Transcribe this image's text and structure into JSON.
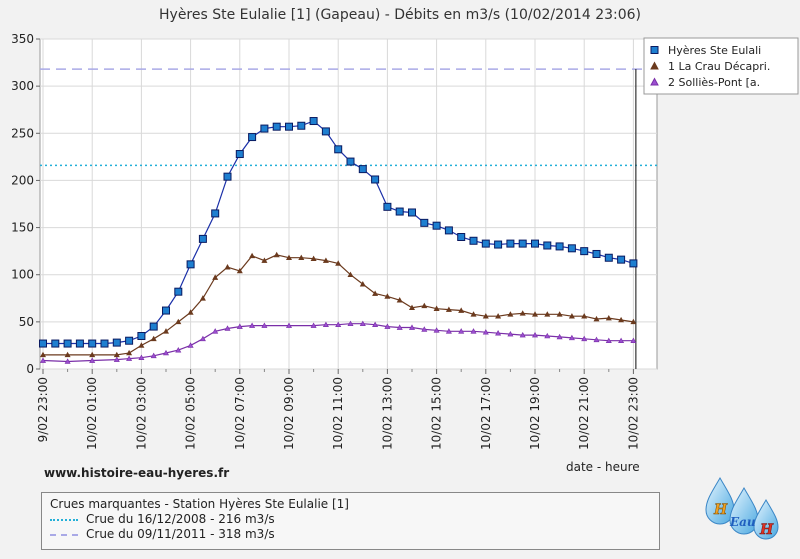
{
  "chart_data": {
    "type": "line",
    "title": "Hyères Ste Eulalie [1] (Gapeau) - Débits en m3/s (10/02/2014 23:06)",
    "xlabel": "date - heure",
    "ylabel": "",
    "ylim": [
      0,
      350
    ],
    "yticks": [
      0,
      50,
      100,
      150,
      200,
      250,
      300,
      350
    ],
    "x_ticks": [
      "9/02 23:00",
      "10/02 01:00",
      "10/02 03:00",
      "10/02 05:00",
      "10/02 07:00",
      "10/02 09:00",
      "10/02 11:00",
      "10/02 13:00",
      "10/02 15:00",
      "10/02 17:00",
      "10/02 19:00",
      "10/02 21:00",
      "10/02 23:00"
    ],
    "x_range_hours": [
      0,
      24.5
    ],
    "grid": true,
    "legend_position": "top-right",
    "now_marker_hour": 24.1,
    "series": [
      {
        "name": "Hyères Ste Eulali",
        "color": "#1a2fa8",
        "marker": "square",
        "marker_fill": "#1e7fd0",
        "points": [
          [
            0,
            27
          ],
          [
            0.5,
            27
          ],
          [
            1,
            27
          ],
          [
            1.5,
            27
          ],
          [
            2,
            27
          ],
          [
            2.5,
            27
          ],
          [
            3,
            28
          ],
          [
            3.5,
            30
          ],
          [
            4,
            35
          ],
          [
            4.5,
            45
          ],
          [
            5,
            62
          ],
          [
            5.5,
            82
          ],
          [
            6,
            111
          ],
          [
            6.5,
            138
          ],
          [
            7,
            165
          ],
          [
            7.5,
            204
          ],
          [
            8,
            228
          ],
          [
            8.5,
            246
          ],
          [
            9,
            255
          ],
          [
            9.5,
            257
          ],
          [
            10,
            257
          ],
          [
            10.5,
            258
          ],
          [
            11,
            263
          ],
          [
            11.5,
            252
          ],
          [
            12,
            233
          ],
          [
            12.5,
            220
          ],
          [
            13,
            212
          ],
          [
            13.5,
            201
          ],
          [
            14,
            172
          ],
          [
            14.5,
            167
          ],
          [
            15,
            166
          ],
          [
            15.5,
            155
          ],
          [
            16,
            152
          ],
          [
            16.5,
            147
          ],
          [
            17,
            140
          ],
          [
            17.5,
            136
          ],
          [
            18,
            133
          ],
          [
            18.5,
            132
          ],
          [
            19,
            133
          ],
          [
            19.5,
            133
          ],
          [
            20,
            133
          ],
          [
            20.5,
            131
          ],
          [
            21,
            130
          ],
          [
            21.5,
            128
          ],
          [
            22,
            125
          ],
          [
            22.5,
            122
          ],
          [
            23,
            118
          ],
          [
            23.5,
            116
          ],
          [
            24,
            112
          ]
        ]
      },
      {
        "name": "1 La Crau Décapri.",
        "color": "#6b3a1e",
        "marker": "triangle",
        "marker_fill": "#6b3a1e",
        "points": [
          [
            0,
            15
          ],
          [
            1,
            15
          ],
          [
            2,
            15
          ],
          [
            3,
            15
          ],
          [
            3.5,
            17
          ],
          [
            4,
            25
          ],
          [
            4.5,
            32
          ],
          [
            5,
            40
          ],
          [
            5.5,
            50
          ],
          [
            6,
            60
          ],
          [
            6.5,
            75
          ],
          [
            7,
            97
          ],
          [
            7.5,
            108
          ],
          [
            8,
            104
          ],
          [
            8.5,
            120
          ],
          [
            9,
            115
          ],
          [
            9.5,
            121
          ],
          [
            10,
            118
          ],
          [
            10.5,
            118
          ],
          [
            11,
            117
          ],
          [
            11.5,
            115
          ],
          [
            12,
            112
          ],
          [
            12.5,
            100
          ],
          [
            13,
            90
          ],
          [
            13.5,
            80
          ],
          [
            14,
            77
          ],
          [
            14.5,
            73
          ],
          [
            15,
            65
          ],
          [
            15.5,
            67
          ],
          [
            16,
            64
          ],
          [
            16.5,
            63
          ],
          [
            17,
            62
          ],
          [
            17.5,
            58
          ],
          [
            18,
            56
          ],
          [
            18.5,
            56
          ],
          [
            19,
            58
          ],
          [
            19.5,
            59
          ],
          [
            20,
            58
          ],
          [
            20.5,
            58
          ],
          [
            21,
            58
          ],
          [
            21.5,
            56
          ],
          [
            22,
            56
          ],
          [
            22.5,
            53
          ],
          [
            23,
            54
          ],
          [
            23.5,
            52
          ],
          [
            24,
            50
          ]
        ]
      },
      {
        "name": "2 Solliès-Pont [a.",
        "color": "#7a2fa8",
        "marker": "triangle",
        "marker_fill": "#9b4fd0",
        "points": [
          [
            0,
            9
          ],
          [
            1,
            8
          ],
          [
            2,
            9
          ],
          [
            3,
            10
          ],
          [
            3.5,
            11
          ],
          [
            4,
            12
          ],
          [
            4.5,
            14
          ],
          [
            5,
            17
          ],
          [
            5.5,
            20
          ],
          [
            6,
            25
          ],
          [
            6.5,
            32
          ],
          [
            7,
            40
          ],
          [
            7.5,
            43
          ],
          [
            8,
            45
          ],
          [
            8.5,
            46
          ],
          [
            9,
            46
          ],
          [
            10,
            46
          ],
          [
            11,
            46
          ],
          [
            11.5,
            47
          ],
          [
            12,
            47
          ],
          [
            12.5,
            48
          ],
          [
            13,
            48
          ],
          [
            13.5,
            47
          ],
          [
            14,
            45
          ],
          [
            14.5,
            44
          ],
          [
            15,
            44
          ],
          [
            15.5,
            42
          ],
          [
            16,
            41
          ],
          [
            16.5,
            40
          ],
          [
            17,
            40
          ],
          [
            17.5,
            40
          ],
          [
            18,
            39
          ],
          [
            18.5,
            38
          ],
          [
            19,
            37
          ],
          [
            19.5,
            36
          ],
          [
            20,
            36
          ],
          [
            20.5,
            35
          ],
          [
            21,
            34
          ],
          [
            21.5,
            33
          ],
          [
            22,
            32
          ],
          [
            22.5,
            31
          ],
          [
            23,
            30
          ],
          [
            23.5,
            30
          ],
          [
            24,
            30
          ]
        ]
      }
    ],
    "reference_lines": [
      {
        "value": 216,
        "color": "#23b0d8",
        "style": "dotted"
      },
      {
        "value": 318,
        "color": "#a9a9e6",
        "style": "dashed"
      }
    ]
  },
  "footer": {
    "website": "www.histoire-eau-hyeres.fr",
    "legend_title": "Crues marquantes - Station Hyères Ste Eulalie [1]",
    "flood_1": "Crue du 16/12/2008 - 216 m3/s",
    "flood_2": "Crue du 09/11/2011 - 318 m3/s"
  },
  "logo": {
    "letters": [
      "H",
      "Eau",
      "H"
    ]
  }
}
